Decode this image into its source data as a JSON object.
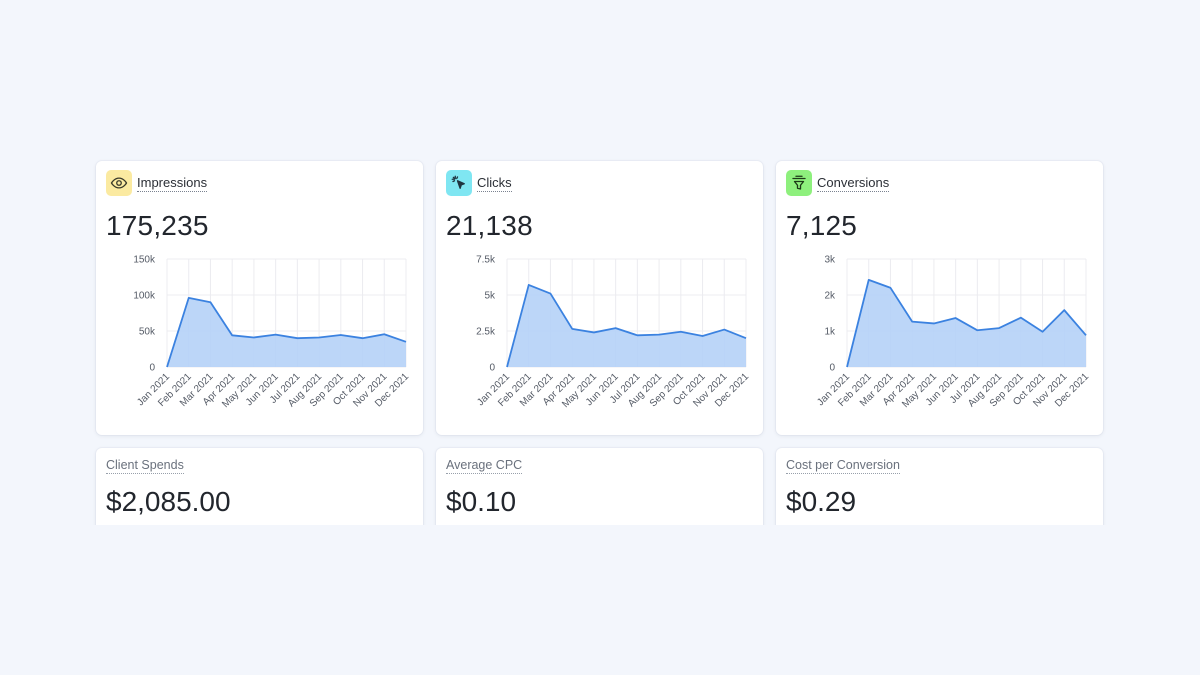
{
  "metrics": [
    {
      "title": "Impressions",
      "icon": "eye-icon",
      "icon_bg": "#fbeaa1",
      "value": "175,235",
      "chart_data": {
        "type": "area",
        "categories": [
          "Jan 2021",
          "Feb 2021",
          "Mar 2021",
          "Apr 2021",
          "May 2021",
          "Jun 2021",
          "Jul 2021",
          "Aug 2021",
          "Sep 2021",
          "Oct 2021",
          "Nov 2021",
          "Dec 2021"
        ],
        "values": [
          0,
          96000,
          90000,
          44000,
          41000,
          45000,
          40000,
          41000,
          44500,
          40000,
          45500,
          35000
        ],
        "ylim": [
          0,
          150000
        ],
        "yticks": [
          0,
          50000,
          100000,
          150000
        ],
        "ytick_labels": [
          "0",
          "50k",
          "100k",
          "150k"
        ],
        "grid": true,
        "line_color": "#3b82e0",
        "fill_color": "#b5d2f7"
      }
    },
    {
      "title": "Clicks",
      "icon": "cursor-click-icon",
      "icon_bg": "#7fe6f2",
      "value": "21,138",
      "chart_data": {
        "type": "area",
        "categories": [
          "Jan 2021",
          "Feb 2021",
          "Mar 2021",
          "Apr 2021",
          "May 2021",
          "Jun 2021",
          "Jul 2021",
          "Aug 2021",
          "Sep 2021",
          "Oct 2021",
          "Nov 2021",
          "Dec 2021"
        ],
        "values": [
          0,
          5700,
          5100,
          2650,
          2400,
          2700,
          2200,
          2250,
          2450,
          2150,
          2600,
          2000
        ],
        "ylim": [
          0,
          7500
        ],
        "yticks": [
          0,
          2500,
          5000,
          7500
        ],
        "ytick_labels": [
          "0",
          "2.5k",
          "5k",
          "7.5k"
        ],
        "grid": true,
        "line_color": "#3b82e0",
        "fill_color": "#b5d2f7"
      }
    },
    {
      "title": "Conversions",
      "icon": "funnel-icon",
      "icon_bg": "#8ef07d",
      "value": "7,125",
      "chart_data": {
        "type": "area",
        "categories": [
          "Jan 2021",
          "Feb 2021",
          "Mar 2021",
          "Apr 2021",
          "May 2021",
          "Jun 2021",
          "Jul 2021",
          "Aug 2021",
          "Sep 2021",
          "Oct 2021",
          "Nov 2021",
          "Dec 2021"
        ],
        "values": [
          0,
          2420,
          2200,
          1260,
          1210,
          1360,
          1020,
          1080,
          1370,
          980,
          1580,
          880
        ],
        "ylim": [
          0,
          3000
        ],
        "yticks": [
          0,
          1000,
          2000,
          3000
        ],
        "ytick_labels": [
          "0",
          "1k",
          "2k",
          "3k"
        ],
        "grid": true,
        "line_color": "#3b82e0",
        "fill_color": "#b5d2f7"
      }
    }
  ],
  "kpis": [
    {
      "title": "Client Spends",
      "value": "$2,085.00"
    },
    {
      "title": "Average CPC",
      "value": "$0.10"
    },
    {
      "title": "Cost per Conversion",
      "value": "$0.29"
    }
  ]
}
